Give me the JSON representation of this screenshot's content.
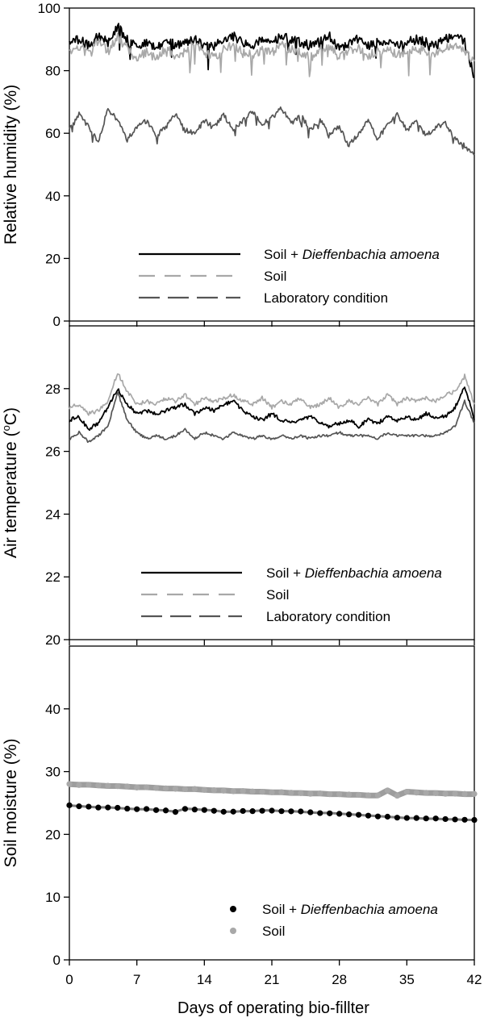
{
  "figure": {
    "xlabel": "Days of operating bio-fillter",
    "x_ticks": [
      "0",
      "7",
      "14",
      "21",
      "28",
      "35",
      "42"
    ]
  },
  "colors": {
    "black": "#000000",
    "light_gray": "#a8a8a8",
    "dark_gray": "#555555"
  },
  "chart_data": [
    {
      "type": "line",
      "title": "",
      "ylabel": "Relative humidity (%)",
      "xlim": [
        0,
        42
      ],
      "ylim": [
        0,
        100
      ],
      "y_ticks": [
        "0",
        "20",
        "40",
        "60",
        "80",
        "100"
      ],
      "x": [
        0,
        1,
        2,
        3,
        4,
        5,
        6,
        7,
        8,
        9,
        10,
        11,
        12,
        13,
        14,
        15,
        16,
        17,
        18,
        19,
        20,
        21,
        22,
        23,
        24,
        25,
        26,
        27,
        28,
        29,
        30,
        31,
        32,
        33,
        34,
        35,
        36,
        37,
        38,
        39,
        40,
        41,
        42
      ],
      "series": [
        {
          "name": "Soil + Dieffenbachia amoena",
          "legend_prefix": "Soil + ",
          "legend_italic": "Dieffenbachia amoena",
          "style": "solid",
          "color": "#000000",
          "values": [
            89,
            90,
            88,
            91,
            89,
            94,
            90,
            88,
            89,
            87,
            90,
            88,
            89,
            90,
            89,
            88,
            90,
            91,
            89,
            88,
            90,
            89,
            91,
            90,
            89,
            88,
            90,
            91,
            87,
            89,
            90,
            88,
            89,
            90,
            88,
            89,
            90,
            89,
            88,
            90,
            92,
            89,
            78
          ]
        },
        {
          "name": "Soil",
          "legend_prefix": "Soil",
          "legend_italic": "",
          "style": "dash",
          "color": "#a8a8a8",
          "values": [
            86,
            88,
            85,
            90,
            86,
            91,
            87,
            84,
            86,
            84,
            87,
            85,
            86,
            88,
            86,
            84,
            87,
            88,
            86,
            85,
            87,
            86,
            88,
            87,
            86,
            84,
            87,
            88,
            84,
            86,
            87,
            85,
            86,
            87,
            85,
            86,
            87,
            86,
            85,
            87,
            88,
            86,
            83
          ]
        },
        {
          "name": "Laboratory condition",
          "legend_prefix": "Laboratory condition",
          "legend_italic": "",
          "style": "longdash",
          "color": "#555555",
          "values": [
            61,
            66,
            62,
            57,
            68,
            64,
            58,
            62,
            64,
            59,
            62,
            66,
            61,
            60,
            64,
            62,
            66,
            61,
            64,
            67,
            63,
            65,
            68,
            63,
            66,
            61,
            64,
            60,
            62,
            56,
            60,
            64,
            58,
            63,
            66,
            61,
            64,
            59,
            62,
            63,
            58,
            56,
            53
          ]
        }
      ]
    },
    {
      "type": "line",
      "title": "",
      "ylabel": "Air temperature (",
      "ylabel_sup": "o",
      "ylabel_suffix": "C)",
      "xlim": [
        0,
        42
      ],
      "ylim": [
        20,
        30
      ],
      "y_ticks": [
        "20",
        "22",
        "24",
        "26",
        "28"
      ],
      "x": [
        0,
        1,
        2,
        3,
        4,
        5,
        6,
        7,
        8,
        9,
        10,
        11,
        12,
        13,
        14,
        15,
        16,
        17,
        18,
        19,
        20,
        21,
        22,
        23,
        24,
        25,
        26,
        27,
        28,
        29,
        30,
        31,
        32,
        33,
        34,
        35,
        36,
        37,
        38,
        39,
        40,
        41,
        42
      ],
      "series": [
        {
          "name": "Soil + Dieffenbachia amoena",
          "legend_prefix": "Soil + ",
          "legend_italic": "Dieffenbachia amoena",
          "style": "solid",
          "color": "#000000",
          "values": [
            27.0,
            27.1,
            26.7,
            26.9,
            27.4,
            28.0,
            27.5,
            27.2,
            27.3,
            27.2,
            27.3,
            27.4,
            27.5,
            27.2,
            27.4,
            27.3,
            27.5,
            27.6,
            27.3,
            27.1,
            27.0,
            27.2,
            27.0,
            26.9,
            27.0,
            27.1,
            26.9,
            26.8,
            26.9,
            27.0,
            26.8,
            27.0,
            26.9,
            27.1,
            27.0,
            27.1,
            27.0,
            27.2,
            27.1,
            27.1,
            27.4,
            28.1,
            27.0
          ]
        },
        {
          "name": "Soil",
          "legend_prefix": "Soil",
          "legend_italic": "",
          "style": "dash",
          "color": "#a8a8a8",
          "values": [
            27.4,
            27.5,
            27.2,
            27.3,
            27.6,
            28.5,
            27.9,
            27.5,
            27.6,
            27.5,
            27.7,
            27.6,
            27.8,
            27.5,
            27.7,
            27.6,
            27.7,
            27.8,
            27.6,
            27.5,
            27.7,
            27.4,
            27.6,
            27.5,
            27.7,
            27.4,
            27.5,
            27.7,
            27.4,
            27.6,
            27.5,
            27.7,
            27.5,
            27.8,
            27.5,
            27.7,
            27.6,
            27.7,
            27.6,
            27.8,
            27.9,
            28.4,
            27.5
          ]
        },
        {
          "name": "Laboratory condition",
          "legend_prefix": "Laboratory condition",
          "legend_italic": "",
          "style": "longdash",
          "color": "#555555",
          "values": [
            26.4,
            26.6,
            26.3,
            26.5,
            26.8,
            27.9,
            27.0,
            26.6,
            26.4,
            26.5,
            26.4,
            26.5,
            26.7,
            26.4,
            26.6,
            26.5,
            26.4,
            26.6,
            26.5,
            26.4,
            26.5,
            26.4,
            26.5,
            26.4,
            26.5,
            26.4,
            26.5,
            26.5,
            26.6,
            26.5,
            26.5,
            26.5,
            26.4,
            26.6,
            26.5,
            26.5,
            26.5,
            26.5,
            26.5,
            26.6,
            26.8,
            27.6,
            26.9
          ]
        }
      ]
    },
    {
      "type": "scatter",
      "title": "",
      "ylabel": "Soil moisture (%)",
      "xlim": [
        0,
        42
      ],
      "ylim": [
        0,
        50
      ],
      "y_ticks": [
        "0",
        "10",
        "20",
        "30",
        "40"
      ],
      "x": [
        0,
        1,
        2,
        3,
        4,
        5,
        6,
        7,
        8,
        9,
        10,
        11,
        12,
        13,
        14,
        15,
        16,
        17,
        18,
        19,
        20,
        21,
        22,
        23,
        24,
        25,
        26,
        27,
        28,
        29,
        30,
        31,
        32,
        33,
        34,
        35,
        36,
        37,
        38,
        39,
        40,
        41,
        42
      ],
      "series": [
        {
          "name": "Soil + Dieffenbachia amoena",
          "legend_prefix": "Soil + ",
          "legend_italic": "Dieffenbachia amoena",
          "style": "dots",
          "color": "#000000",
          "values": [
            24.6,
            24.5,
            24.4,
            24.3,
            24.3,
            24.2,
            24.1,
            24.0,
            24.0,
            23.9,
            23.8,
            23.6,
            24.1,
            24.0,
            23.9,
            23.8,
            23.6,
            23.6,
            23.7,
            23.7,
            23.8,
            23.8,
            23.7,
            23.7,
            23.6,
            23.5,
            23.4,
            23.4,
            23.3,
            23.2,
            23.1,
            23.0,
            22.9,
            22.8,
            22.7,
            22.6,
            22.6,
            22.5,
            22.5,
            22.4,
            22.4,
            22.3,
            22.3
          ]
        },
        {
          "name": "Soil",
          "legend_prefix": "Soil",
          "legend_italic": "",
          "style": "dots",
          "color": "#a8a8a8",
          "values": [
            28.0,
            27.9,
            27.9,
            27.8,
            27.7,
            27.7,
            27.6,
            27.5,
            27.5,
            27.4,
            27.3,
            27.3,
            27.2,
            27.2,
            27.1,
            27.0,
            27.0,
            26.9,
            26.9,
            26.8,
            26.8,
            26.7,
            26.7,
            26.6,
            26.6,
            26.5,
            26.5,
            26.4,
            26.4,
            26.3,
            26.3,
            26.2,
            26.2,
            27.0,
            26.2,
            26.8,
            26.7,
            26.6,
            26.6,
            26.5,
            26.5,
            26.4,
            26.4
          ]
        }
      ]
    }
  ]
}
